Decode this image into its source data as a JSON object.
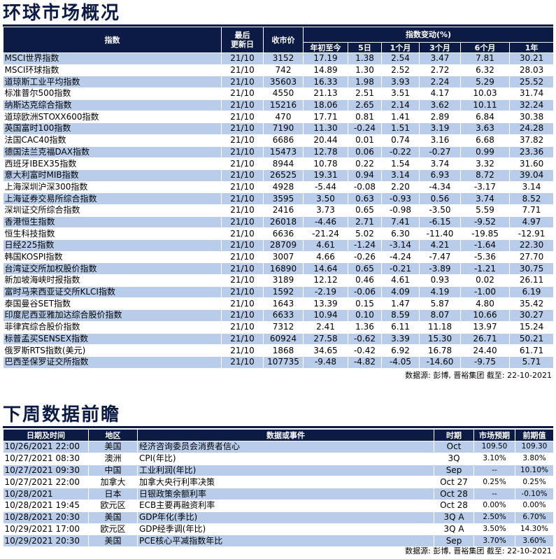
{
  "section1": {
    "title": "环球市场概况",
    "headers": {
      "index": "指数",
      "updated": "最后\n更新日",
      "close": "收市价",
      "change_group": "指数变动(%)",
      "periods": [
        "年初至今",
        "5日",
        "1个月",
        "3个月",
        "6个月",
        "1年"
      ]
    },
    "source": "数据源: 彭博, 晋裕集团 截至: 22-10-2021"
  },
  "chart_data": {
    "type": "table",
    "title": "环球市场概况",
    "columns": [
      "指数",
      "最后更新日",
      "收市价",
      "年初至今",
      "5日",
      "1个月",
      "3个月",
      "6个月",
      "1年"
    ],
    "rows": [
      [
        "MSCI世界指数",
        "21/10",
        "3152",
        "17.19",
        "1.38",
        "2.54",
        "3.47",
        "7.81",
        "30.21"
      ],
      [
        "MSCI环球指数",
        "21/10",
        "742",
        "14.89",
        "1.30",
        "2.52",
        "2.72",
        "6.32",
        "28.03"
      ],
      [
        "道琼斯工业平均指数",
        "21/10",
        "35603",
        "16.33",
        "1.98",
        "3.93",
        "2.24",
        "5.29",
        "25.52"
      ],
      [
        "标准普尔500指数",
        "21/10",
        "4550",
        "21.13",
        "2.51",
        "3.51",
        "4.17",
        "10.03",
        "31.74"
      ],
      [
        "纳斯达克综合指数",
        "21/10",
        "15216",
        "18.06",
        "2.65",
        "2.14",
        "3.62",
        "10.11",
        "32.24"
      ],
      [
        "道琼欧洲STOXX600指数",
        "21/10",
        "470",
        "17.71",
        "0.81",
        "1.41",
        "2.89",
        "6.84",
        "30.38"
      ],
      [
        "英国富时100指数",
        "21/10",
        "7190",
        "11.30",
        "-0.24",
        "1.51",
        "3.19",
        "3.63",
        "24.28"
      ],
      [
        "法国CAC40指数",
        "21/10",
        "6686",
        "20.44",
        "0.01",
        "0.74",
        "3.16",
        "6.68",
        "37.82"
      ],
      [
        "德国法兰克福DAX指数",
        "21/10",
        "15473",
        "12.78",
        "0.06",
        "-0.22",
        "-0.27",
        "0.99",
        "23.36"
      ],
      [
        "西班牙IBEX35指数",
        "21/10",
        "8944",
        "10.78",
        "0.22",
        "1.54",
        "3.74",
        "3.32",
        "31.60"
      ],
      [
        "意大利富时MIB指数",
        "21/10",
        "26525",
        "19.31",
        "0.94",
        "3.14",
        "6.93",
        "8.72",
        "39.04"
      ],
      [
        "上海深圳沪深300指数",
        "21/10",
        "4928",
        "-5.44",
        "-0.08",
        "2.20",
        "-4.34",
        "-3.17",
        "3.14"
      ],
      [
        "上海证券交易所综合指数",
        "21/10",
        "3595",
        "3.50",
        "0.63",
        "-0.93",
        "0.56",
        "3.74",
        "8.52"
      ],
      [
        "深圳证交所综合指数",
        "21/10",
        "2416",
        "3.73",
        "0.65",
        "-0.98",
        "-3.50",
        "5.59",
        "7.71"
      ],
      [
        "香港恒生指数",
        "21/10",
        "26018",
        "-4.46",
        "2.71",
        "7.41",
        "-6.15",
        "-9.52",
        "4.97"
      ],
      [
        "恒生科技指数",
        "21/10",
        "6636",
        "-21.24",
        "5.02",
        "6.30",
        "-11.40",
        "-19.85",
        "-12.91"
      ],
      [
        "日经225指数",
        "21/10",
        "28709",
        "4.61",
        "-1.24",
        "-3.14",
        "4.21",
        "-1.64",
        "22.30"
      ],
      [
        "韩国KOSPI指数",
        "21/10",
        "3007",
        "4.66",
        "-0.26",
        "-4.24",
        "-7.47",
        "-5.36",
        "27.70"
      ],
      [
        "台湾证交所加权股价指数",
        "21/10",
        "16890",
        "14.64",
        "0.65",
        "-0.21",
        "-3.89",
        "-1.21",
        "30.75"
      ],
      [
        "新加坡海峡时报指数",
        "21/10",
        "3189",
        "12.12",
        "0.46",
        "4.61",
        "0.93",
        "0.02",
        "26.11"
      ],
      [
        "富时马来西亚证交所KLCI指数",
        "21/10",
        "1592",
        "-2.19",
        "-0.06",
        "4.09",
        "4.19",
        "-1.00",
        "6.19"
      ],
      [
        "泰国曼谷SET指数",
        "21/10",
        "1643",
        "13.39",
        "0.15",
        "1.47",
        "5.87",
        "4.80",
        "35.42"
      ],
      [
        "印度尼西亚雅加达综合股价指数",
        "21/10",
        "6633",
        "10.94",
        "0.10",
        "8.59",
        "8.07",
        "10.66",
        "30.27"
      ],
      [
        "菲律宾综合股价指数",
        "21/10",
        "7312",
        "2.41",
        "1.36",
        "6.11",
        "11.18",
        "13.97",
        "15.24"
      ],
      [
        "标普孟买SENSEX指数",
        "21/10",
        "60924",
        "27.58",
        "-0.62",
        "3.39",
        "15.30",
        "26.71",
        "50.21"
      ],
      [
        "俄罗斯RTS指数(美元)",
        "21/10",
        "1868",
        "34.65",
        "-0.42",
        "6.92",
        "16.78",
        "24.40",
        "61.71"
      ],
      [
        "巴西圣保罗证交所指数",
        "21/10",
        "107735",
        "-9.48",
        "-4.82",
        "-4.05",
        "-14.60",
        "-9.75",
        "5.71"
      ]
    ]
  },
  "section2": {
    "title": "下周数据前瞻",
    "headers": [
      "日期及时间",
      "地区",
      "数据或事件",
      "时期",
      "市场预期",
      "前期值"
    ],
    "rows": [
      [
        "10/26/2021 22:00",
        "美国",
        "经济咨询委员会消费者信心",
        "Oct",
        "109.50",
        "109.30"
      ],
      [
        "10/27/2021 08:30",
        "澳洲",
        "CPI(年比)",
        "3Q",
        "3.10%",
        "3.80%"
      ],
      [
        "10/27/2021 09:30",
        "中国",
        "工业利润(年比)",
        "Sep",
        "--",
        "10.10%"
      ],
      [
        "10/27/2021 22:00",
        "加拿大",
        "加拿大央行利率决策",
        "Oct 27",
        "0.25%",
        "0.25%"
      ],
      [
        "10/28/2021",
        "日本",
        "日银政策余额利率",
        "Oct 28",
        "--",
        "-0.10%"
      ],
      [
        "10/28/2021 19:45",
        "欧元区",
        "ECB主要再融资利率",
        "Oct 28",
        "0.00%",
        "0.00%"
      ],
      [
        "10/28/2021 20:30",
        "美国",
        "GDP年化(季比)",
        "3Q A",
        "2.50%",
        "6.70%"
      ],
      [
        "10/29/2021 17:00",
        "欧元区",
        "GDP经季调(年比)",
        "3Q A",
        "3.50%",
        "14.30%"
      ],
      [
        "10/29/2021 20:30",
        "美国",
        "PCE核心平减指数年比",
        "Sep",
        "3.70%",
        "3.60%"
      ]
    ],
    "source": "数据源: 彭博, 晋裕集团 截至: 22-10-2021"
  },
  "colors": {
    "header_bg": "#0c1b45",
    "stripe": "#b9cdeb",
    "title": "#0c1b45"
  }
}
